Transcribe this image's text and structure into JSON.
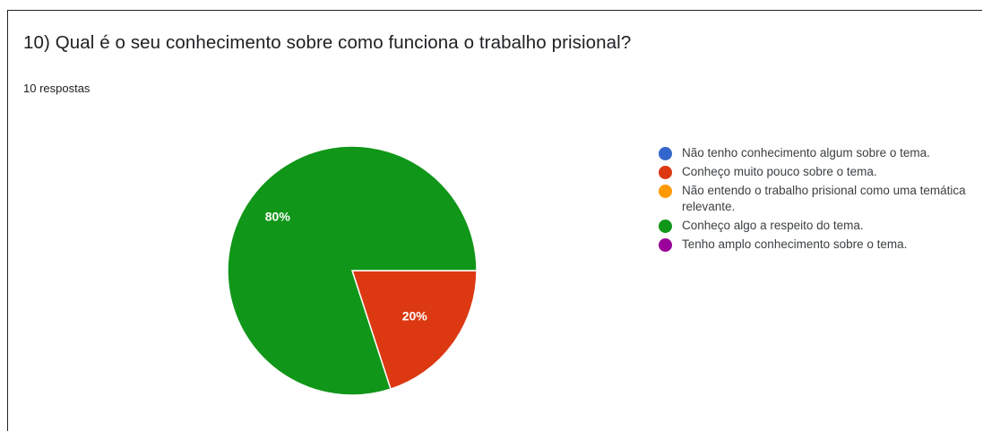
{
  "question": {
    "title": "10) Qual é o seu conhecimento sobre como funciona o trabalho prisional?",
    "responses": "10 respostas"
  },
  "chart_data": {
    "type": "pie",
    "categories": [
      "Não tenho conhecimento algum sobre o tema.",
      "Conheço muito pouco sobre o tema.",
      "Não entendo o trabalho prisional como uma temática relevante.",
      "Conheço algo a respeito do tema.",
      "Tenho amplo conhecimento sobre o tema."
    ],
    "values": [
      0,
      20,
      0,
      80,
      0
    ],
    "value_labels": [
      "",
      "20%",
      "",
      "80%",
      ""
    ],
    "colors": [
      "#3366cc",
      "#dc3912",
      "#ff9900",
      "#109618",
      "#990099"
    ],
    "legend_position": "right"
  }
}
